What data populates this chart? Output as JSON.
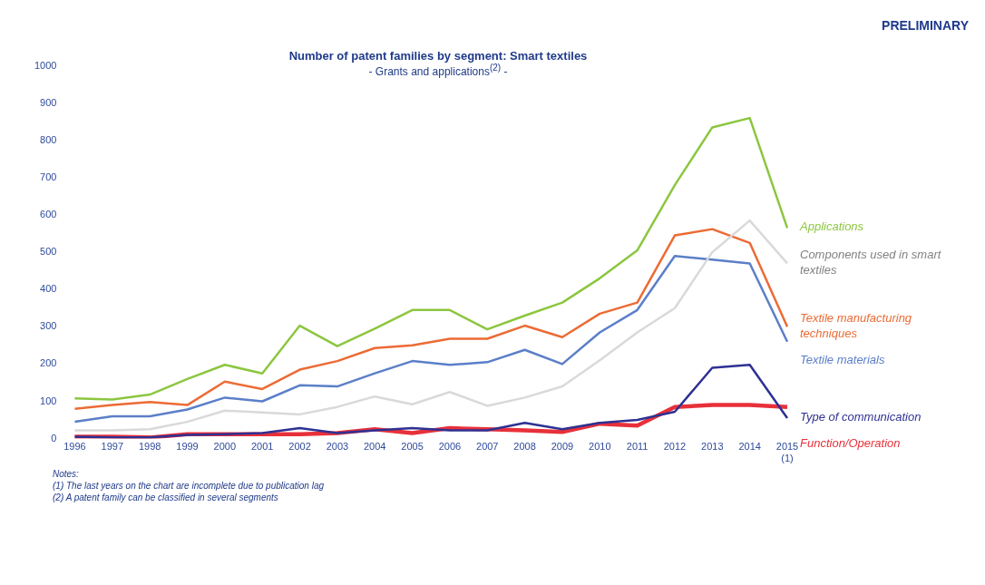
{
  "chart_data": {
    "type": "line",
    "title": "Number of patent families by segment: Smart textiles",
    "subtitle": "- Grants and applications$^{(2)}$ -",
    "categories": [
      "1996",
      "1997",
      "1998",
      "1999",
      "2000",
      "2001",
      "2002",
      "2003",
      "2004",
      "2005",
      "2006",
      "2007",
      "2008",
      "2009",
      "2010",
      "2011",
      "2012",
      "2013",
      "2014",
      "2015\n(1)"
    ],
    "ylim": [
      0,
      1000
    ],
    "yticks": [
      0,
      100,
      200,
      300,
      400,
      500,
      600,
      700,
      800,
      900,
      1000
    ],
    "grid": false,
    "marker": "none",
    "line_style": "solid",
    "series": [
      {
        "name": "Applications",
        "color": "#8cc63f",
        "values": [
          108,
          105,
          118,
          160,
          198,
          175,
          303,
          248,
          295,
          345,
          345,
          293,
          330,
          365,
          430,
          505,
          680,
          835,
          860,
          565
        ]
      },
      {
        "name": "Components used in smart textiles",
        "color": "#d9d9d9",
        "values": [
          22,
          22,
          25,
          45,
          75,
          70,
          65,
          85,
          113,
          92,
          125,
          88,
          110,
          140,
          210,
          285,
          350,
          500,
          585,
          470
        ]
      },
      {
        "name": "Textile manufacturing techniques",
        "color": "#ec6b35",
        "values": [
          80,
          90,
          98,
          90,
          153,
          133,
          185,
          208,
          243,
          250,
          268,
          268,
          303,
          272,
          335,
          365,
          545,
          562,
          525,
          300
        ]
      },
      {
        "name": "Textile materials",
        "color": "#5b7fc8",
        "values": [
          45,
          60,
          60,
          78,
          110,
          100,
          143,
          140,
          175,
          208,
          198,
          205,
          238,
          200,
          285,
          345,
          490,
          480,
          470,
          260
        ]
      },
      {
        "name": "Type of communication",
        "color": "#2e3192",
        "values": [
          5,
          3,
          3,
          10,
          12,
          15,
          28,
          15,
          22,
          28,
          22,
          22,
          42,
          25,
          42,
          50,
          72,
          190,
          198,
          55
        ]
      },
      {
        "name": "Function/Operation",
        "color": "#e8303a",
        "values": [
          5,
          5,
          3,
          12,
          12,
          12,
          12,
          15,
          25,
          15,
          28,
          25,
          22,
          18,
          40,
          35,
          85,
          90,
          90,
          85
        ]
      }
    ],
    "annotations": [
      "PRELIMINARY",
      "Notes:",
      "(1) The last years on the chart are incomplete due to publication lag",
      "(2) A patent family can be classified in several segments"
    ]
  }
}
